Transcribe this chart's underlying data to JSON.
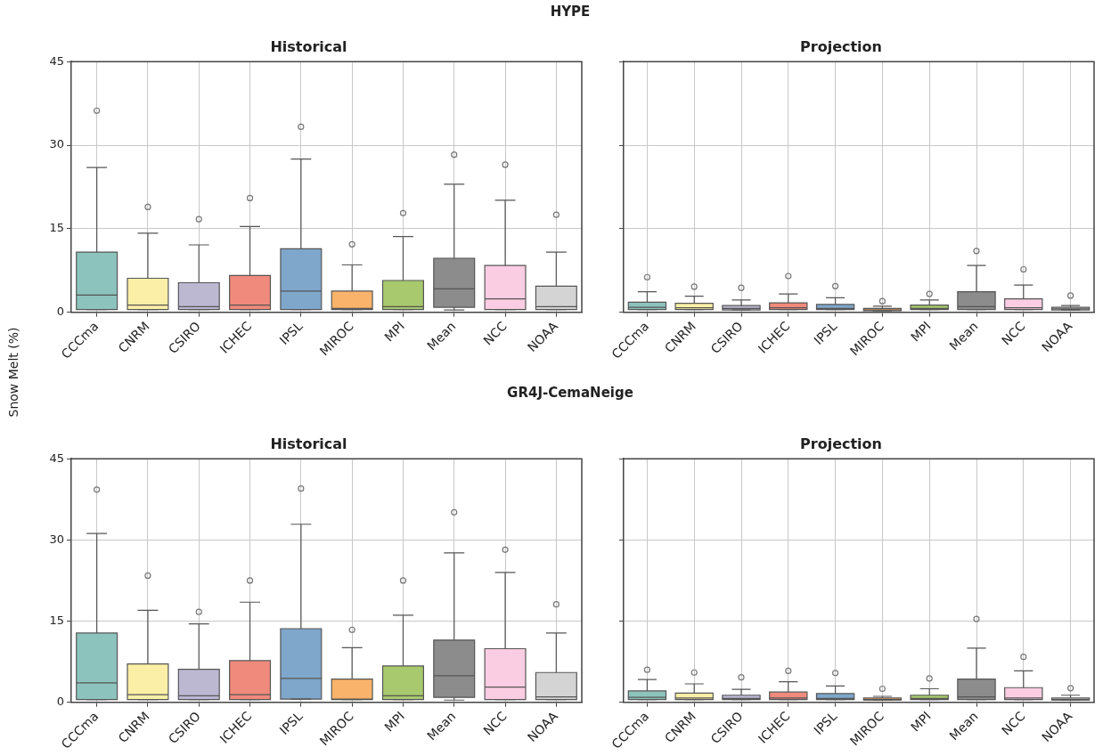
{
  "chart_data": [
    {
      "type": "box",
      "title": "Historical",
      "annotations": [
        "HYPE"
      ],
      "ylabel": "Snow Melt (%)",
      "categories": [
        "CCCma",
        "CNRM",
        "CSIRO",
        "ICHEC",
        "IPSL",
        "MIROC",
        "MPI",
        "Mean",
        "NCC",
        "NOAA"
      ],
      "colors": [
        "#8dc3bd",
        "#fbefa7",
        "#bcb8d2",
        "#f08a7c",
        "#7fa6cb",
        "#f9b36a",
        "#a8c96d",
        "#8c8c8c",
        "#fbcde2",
        "#d4d4d4"
      ],
      "ylim": [
        0,
        45
      ],
      "yticks": [
        0,
        15,
        30,
        45
      ],
      "grid": true,
      "boxes": [
        {
          "low": 0.5,
          "q1": 0.5,
          "median": 3.1,
          "q3": 10.8,
          "high": 26.0,
          "outliers": [
            36.2
          ]
        },
        {
          "low": 0.5,
          "q1": 0.5,
          "median": 1.3,
          "q3": 6.1,
          "high": 14.2,
          "outliers": [
            18.9
          ]
        },
        {
          "low": 0.5,
          "q1": 0.5,
          "median": 1.0,
          "q3": 5.3,
          "high": 12.1,
          "outliers": [
            16.7
          ]
        },
        {
          "low": 0.5,
          "q1": 0.5,
          "median": 1.3,
          "q3": 6.6,
          "high": 15.4,
          "outliers": [
            20.5
          ]
        },
        {
          "low": 0.5,
          "q1": 0.5,
          "median": 3.8,
          "q3": 11.4,
          "high": 27.5,
          "outliers": [
            33.3
          ]
        },
        {
          "low": 0.5,
          "q1": 0.5,
          "median": 0.7,
          "q3": 3.8,
          "high": 8.5,
          "outliers": [
            12.2
          ]
        },
        {
          "low": 0.5,
          "q1": 0.5,
          "median": 1.0,
          "q3": 5.7,
          "high": 13.6,
          "outliers": [
            17.8
          ]
        },
        {
          "low": 0.4,
          "q1": 0.9,
          "median": 4.2,
          "q3": 9.7,
          "high": 23.0,
          "outliers": [
            28.3
          ]
        },
        {
          "low": 0.5,
          "q1": 0.5,
          "median": 2.4,
          "q3": 8.4,
          "high": 20.1,
          "outliers": [
            26.5
          ]
        },
        {
          "low": 0.5,
          "q1": 0.5,
          "median": 1.0,
          "q3": 4.7,
          "high": 10.8,
          "outliers": [
            17.5
          ]
        }
      ]
    },
    {
      "type": "box",
      "title": "Projection",
      "categories": [
        "CCCma",
        "CNRM",
        "CSIRO",
        "ICHEC",
        "IPSL",
        "MIROC",
        "MPI",
        "Mean",
        "NCC",
        "NOAA"
      ],
      "colors": [
        "#8dc3bd",
        "#fbefa7",
        "#bcb8d2",
        "#f08a7c",
        "#7fa6cb",
        "#f9b36a",
        "#a8c96d",
        "#8c8c8c",
        "#fbcde2",
        "#d4d4d4"
      ],
      "ylim": [
        0,
        45
      ],
      "yticks": [
        0,
        15,
        30,
        45
      ],
      "grid": true,
      "tick_labels": "x",
      "boxes": [
        {
          "low": 0.5,
          "q1": 0.5,
          "median": 0.9,
          "q3": 1.8,
          "high": 3.7,
          "outliers": [
            6.3
          ]
        },
        {
          "low": 0.5,
          "q1": 0.5,
          "median": 0.8,
          "q3": 1.6,
          "high": 2.9,
          "outliers": [
            4.6
          ]
        },
        {
          "low": 0.4,
          "q1": 0.4,
          "median": 0.7,
          "q3": 1.2,
          "high": 2.2,
          "outliers": [
            4.4
          ]
        },
        {
          "low": 0.5,
          "q1": 0.5,
          "median": 0.8,
          "q3": 1.7,
          "high": 3.3,
          "outliers": [
            6.5
          ]
        },
        {
          "low": 0.5,
          "q1": 0.5,
          "median": 0.7,
          "q3": 1.4,
          "high": 2.6,
          "outliers": [
            4.7
          ]
        },
        {
          "low": 0.3,
          "q1": 0.3,
          "median": 0.4,
          "q3": 0.7,
          "high": 1.1,
          "outliers": [
            2.0
          ]
        },
        {
          "low": 0.5,
          "q1": 0.5,
          "median": 0.7,
          "q3": 1.3,
          "high": 2.2,
          "outliers": [
            3.3
          ]
        },
        {
          "low": 0.5,
          "q1": 0.5,
          "median": 1.0,
          "q3": 3.7,
          "high": 8.4,
          "outliers": [
            11.0
          ]
        },
        {
          "low": 0.5,
          "q1": 0.5,
          "median": 0.8,
          "q3": 2.4,
          "high": 4.9,
          "outliers": [
            7.7
          ]
        },
        {
          "low": 0.4,
          "q1": 0.4,
          "median": 0.6,
          "q3": 0.9,
          "high": 1.2,
          "outliers": [
            3.0
          ]
        }
      ]
    },
    {
      "type": "box",
      "title": "Historical",
      "annotations": [
        "GR4J-CemaNeige"
      ],
      "categories": [
        "CCCma",
        "CNRM",
        "CSIRO",
        "ICHEC",
        "IPSL",
        "MIROC",
        "MPI",
        "Mean",
        "NCC",
        "NOAA"
      ],
      "colors": [
        "#8dc3bd",
        "#fbefa7",
        "#bcb8d2",
        "#f08a7c",
        "#7fa6cb",
        "#f9b36a",
        "#a8c96d",
        "#8c8c8c",
        "#fbcde2",
        "#d4d4d4"
      ],
      "ylim": [
        0,
        45
      ],
      "yticks": [
        0,
        15,
        30,
        45
      ],
      "grid": true,
      "boxes": [
        {
          "low": 0.5,
          "q1": 0.5,
          "median": 3.6,
          "q3": 12.8,
          "high": 31.2,
          "outliers": [
            39.3
          ]
        },
        {
          "low": 0.5,
          "q1": 0.5,
          "median": 1.4,
          "q3": 7.1,
          "high": 17.0,
          "outliers": [
            23.4
          ]
        },
        {
          "low": 0.5,
          "q1": 0.5,
          "median": 1.2,
          "q3": 6.1,
          "high": 14.5,
          "outliers": [
            16.7
          ]
        },
        {
          "low": 0.5,
          "q1": 0.5,
          "median": 1.4,
          "q3": 7.7,
          "high": 18.5,
          "outliers": [
            22.5
          ]
        },
        {
          "low": 0.6,
          "q1": 0.6,
          "median": 4.4,
          "q3": 13.6,
          "high": 32.9,
          "outliers": [
            39.5
          ]
        },
        {
          "low": 0.5,
          "q1": 0.5,
          "median": 0.6,
          "q3": 4.3,
          "high": 10.1,
          "outliers": [
            13.4
          ]
        },
        {
          "low": 0.5,
          "q1": 0.5,
          "median": 1.2,
          "q3": 6.7,
          "high": 16.1,
          "outliers": [
            22.5
          ]
        },
        {
          "low": 0.4,
          "q1": 0.9,
          "median": 4.9,
          "q3": 11.5,
          "high": 27.6,
          "outliers": [
            35.1
          ]
        },
        {
          "low": 0.5,
          "q1": 0.5,
          "median": 2.8,
          "q3": 9.9,
          "high": 24.0,
          "outliers": [
            28.2
          ]
        },
        {
          "low": 0.5,
          "q1": 0.5,
          "median": 1.0,
          "q3": 5.5,
          "high": 12.8,
          "outliers": [
            18.1
          ]
        }
      ]
    },
    {
      "type": "box",
      "title": "Projection",
      "categories": [
        "CCCma",
        "CNRM",
        "CSIRO",
        "ICHEC",
        "IPSL",
        "MIROC",
        "MPI",
        "Mean",
        "NCC",
        "NOAA"
      ],
      "colors": [
        "#8dc3bd",
        "#fbefa7",
        "#bcb8d2",
        "#f08a7c",
        "#7fa6cb",
        "#f9b36a",
        "#a8c96d",
        "#8c8c8c",
        "#fbcde2",
        "#d4d4d4"
      ],
      "ylim": [
        0,
        45
      ],
      "yticks": [
        0,
        15,
        30,
        45
      ],
      "grid": true,
      "tick_labels": "x",
      "boxes": [
        {
          "low": 0.5,
          "q1": 0.5,
          "median": 0.9,
          "q3": 2.1,
          "high": 4.2,
          "outliers": [
            6.0
          ]
        },
        {
          "low": 0.5,
          "q1": 0.5,
          "median": 0.8,
          "q3": 1.7,
          "high": 3.4,
          "outliers": [
            5.5
          ]
        },
        {
          "low": 0.5,
          "q1": 0.5,
          "median": 0.7,
          "q3": 1.3,
          "high": 2.4,
          "outliers": [
            4.6
          ]
        },
        {
          "low": 0.5,
          "q1": 0.5,
          "median": 0.8,
          "q3": 1.9,
          "high": 3.8,
          "outliers": [
            5.8
          ]
        },
        {
          "low": 0.5,
          "q1": 0.5,
          "median": 0.7,
          "q3": 1.6,
          "high": 3.0,
          "outliers": [
            5.4
          ]
        },
        {
          "low": 0.4,
          "q1": 0.4,
          "median": 0.5,
          "q3": 0.8,
          "high": 1.1,
          "outliers": [
            2.5
          ]
        },
        {
          "low": 0.5,
          "q1": 0.5,
          "median": 0.7,
          "q3": 1.3,
          "high": 2.5,
          "outliers": [
            4.4
          ]
        },
        {
          "low": 0.5,
          "q1": 0.5,
          "median": 1.0,
          "q3": 4.3,
          "high": 10.0,
          "outliers": [
            15.4
          ]
        },
        {
          "low": 0.5,
          "q1": 0.5,
          "median": 0.8,
          "q3": 2.7,
          "high": 5.8,
          "outliers": [
            8.4
          ]
        },
        {
          "low": 0.4,
          "q1": 0.4,
          "median": 0.5,
          "q3": 0.8,
          "high": 1.3,
          "outliers": [
            2.6
          ]
        }
      ]
    }
  ]
}
